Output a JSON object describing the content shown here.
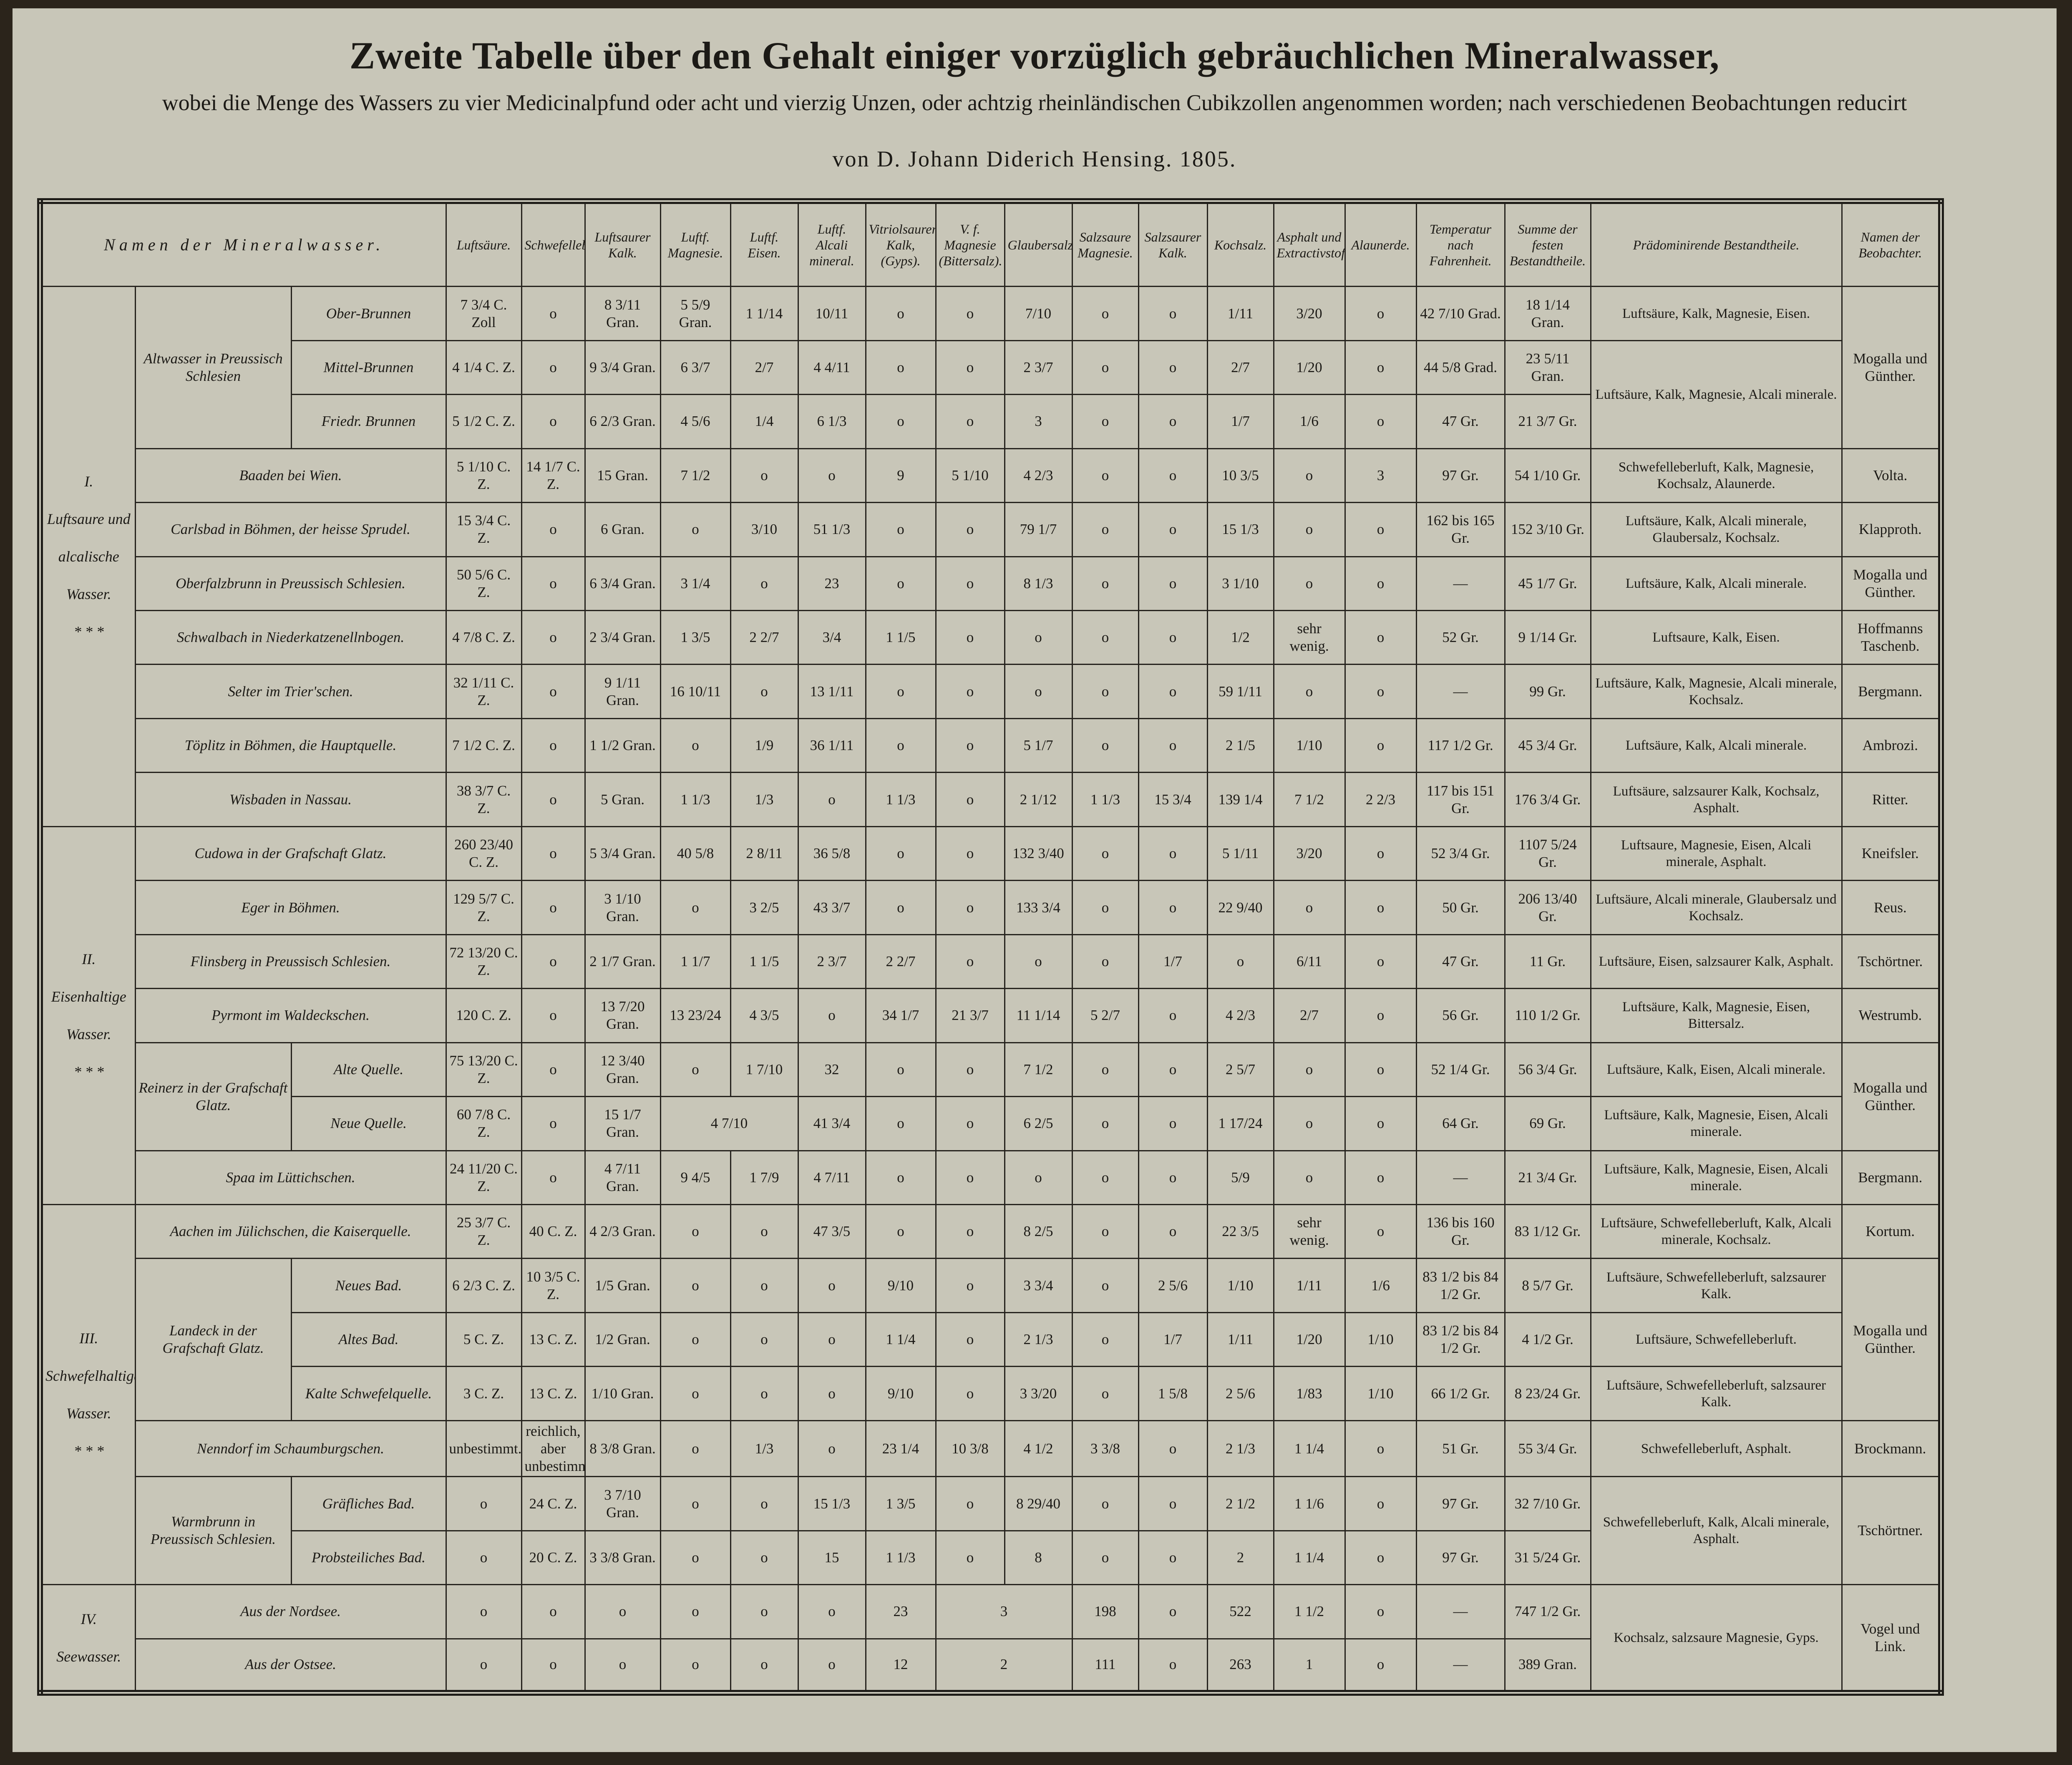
{
  "header": {
    "title": "Zweite Tabelle über den Gehalt einiger vorzüglich gebräuchlichen Mineralwasser,",
    "subtitle": "wobei die Menge des Wassers zu vier Medicinalpfund oder acht und vierzig Unzen, oder achtzig rheinländischen Cubikzollen angenommen worden; nach verschiedenen Beobachtungen reducirt",
    "author": "von D. Johann Diderich Hensing. 1805."
  },
  "table": {
    "columns": [
      "Namen der Mineralwasser.",
      "Luftsäure.",
      "Schwefelleberluft.",
      "Luftsaurer Kalk.",
      "Luftf. Magnesie.",
      "Luftf. Eisen.",
      "Luftf. Alcali mineral.",
      "Vitriolsaurer Kalk, (Gyps).",
      "V. f. Magnesie (Bittersalz).",
      "Glaubersalz.",
      "Salzsaure Magnesie.",
      "Salzsaurer Kalk.",
      "Kochsalz.",
      "Asphalt und Extractivstoff.",
      "Alaunerde.",
      "Temperatur nach Fahrenheit.",
      "Summe der festen Bestandtheile.",
      "Prädominirende Bestandtheile.",
      "Namen der Beobachter."
    ],
    "groups": [
      {
        "label": "I.",
        "caption": "Luftsaure und alcalische Wasser.",
        "mark": "* * *",
        "entries": [
          {
            "name": "Altwasser in Preussisch Schlesien",
            "parts": [
              {
                "name": "Ober-Brunnen",
                "values": [
                  "7 3/4 C. Zoll",
                  "o",
                  "8 3/11 Gran.",
                  "5 5/9 Gran.",
                  "1 1/14",
                  "10/11",
                  "o",
                  "o",
                  "7/10",
                  "o",
                  "o",
                  "1/11",
                  "3/20",
                  "o",
                  "42 7/10 Grad.",
                  "18 1/14 Gran.",
                  "Luftsäure, Kalk, Magnesie, Eisen.",
                  "Mogalla und Günther."
                ]
              },
              {
                "name": "Mittel-Brunnen",
                "values": [
                  "4 1/4 C. Z.",
                  "o",
                  "9 3/4 Gran.",
                  "6 3/7",
                  "2/7",
                  "4 4/11",
                  "o",
                  "o",
                  "2 3/7",
                  "o",
                  "o",
                  "2/7",
                  "1/20",
                  "o",
                  "44 5/8 Grad.",
                  "23 5/11 Gran.",
                  "Luftsäure, Kalk, Magnesie, Alcali minerale.",
                  null
                ]
              },
              {
                "name": "Friedr. Brunnen",
                "values": [
                  "5 1/2 C. Z.",
                  "o",
                  "6 2/3 Gran.",
                  "4 5/6",
                  "1/4",
                  "6 1/3",
                  "o",
                  "o",
                  "3",
                  "o",
                  "o",
                  "1/7",
                  "1/6",
                  "o",
                  "47 Gr.",
                  "21 3/7 Gr.",
                  null,
                  null
                ]
              }
            ]
          },
          {
            "name": "Baaden bei Wien.",
            "values": [
              "5 1/10 C. Z.",
              "14 1/7 C. Z.",
              "15 Gran.",
              "7 1/2",
              "o",
              "o",
              "9",
              "5 1/10",
              "4 2/3",
              "o",
              "o",
              "10 3/5",
              "o",
              "3",
              "97 Gr.",
              "54 1/10 Gr.",
              "Schwefelleberluft, Kalk, Magnesie, Kochsalz, Alaunerde.",
              "Volta."
            ]
          },
          {
            "name": "Carlsbad in Böhmen, der heisse Sprudel.",
            "values": [
              "15 3/4 C. Z.",
              "o",
              "6 Gran.",
              "o",
              "3/10",
              "51 1/3",
              "o",
              "o",
              "79 1/7",
              "o",
              "o",
              "15 1/3",
              "o",
              "o",
              "162 bis 165 Gr.",
              "152 3/10 Gr.",
              "Luftsäure, Kalk, Alcali minerale, Glaubersalz, Kochsalz.",
              "Klapproth."
            ]
          },
          {
            "name": "Oberfalzbrunn in Preussisch Schlesien.",
            "values": [
              "50 5/6 C. Z.",
              "o",
              "6 3/4 Gran.",
              "3 1/4",
              "o",
              "23",
              "o",
              "o",
              "8 1/3",
              "o",
              "o",
              "3 1/10",
              "o",
              "o",
              "—",
              "45 1/7 Gr.",
              "Luftsäure, Kalk, Alcali minerale.",
              "Mogalla und Günther."
            ]
          },
          {
            "name": "Schwalbach in Niederkatzenellnbogen.",
            "values": [
              "4 7/8 C. Z.",
              "o",
              "2 3/4 Gran.",
              "1 3/5",
              "2 2/7",
              "3/4",
              "1 1/5",
              "o",
              "o",
              "o",
              "o",
              "1/2",
              "sehr wenig.",
              "o",
              "52 Gr.",
              "9 1/14 Gr.",
              "Luftsaure, Kalk, Eisen.",
              "Hoffmanns Taschenb."
            ]
          },
          {
            "name": "Selter im Trier'schen.",
            "values": [
              "32 1/11 C. Z.",
              "o",
              "9 1/11 Gran.",
              "16 10/11",
              "o",
              "13 1/11",
              "o",
              "o",
              "o",
              "o",
              "o",
              "59 1/11",
              "o",
              "o",
              "—",
              "99 Gr.",
              "Luftsäure, Kalk, Magnesie, Alcali minerale, Kochsalz.",
              "Bergmann."
            ]
          },
          {
            "name": "Töplitz in Böhmen, die Hauptquelle.",
            "values": [
              "7 1/2 C. Z.",
              "o",
              "1 1/2 Gran.",
              "o",
              "1/9",
              "36 1/11",
              "o",
              "o",
              "5 1/7",
              "o",
              "o",
              "2 1/5",
              "1/10",
              "o",
              "117 1/2 Gr.",
              "45 3/4 Gr.",
              "Luftsäure, Kalk, Alcali minerale.",
              "Ambrozi."
            ]
          },
          {
            "name": "Wisbaden in Nassau.",
            "values": [
              "38 3/7 C. Z.",
              "o",
              "5 Gran.",
              "1 1/3",
              "1/3",
              "o",
              "1 1/3",
              "o",
              "2 1/12",
              "1 1/3",
              "15 3/4",
              "139 1/4",
              "7 1/2",
              "2 2/3",
              "117 bis 151 Gr.",
              "176 3/4 Gr.",
              "Luftsäure, salzsaurer Kalk, Kochsalz, Asphalt.",
              "Ritter."
            ]
          }
        ]
      },
      {
        "label": "II.",
        "caption": "Eisenhaltige Wasser.",
        "mark": "* * *",
        "entries": [
          {
            "name": "Cudowa in der Grafschaft Glatz.",
            "values": [
              "260 23/40 C. Z.",
              "o",
              "5 3/4 Gran.",
              "40 5/8",
              "2 8/11",
              "36 5/8",
              "o",
              "o",
              "132 3/40",
              "o",
              "o",
              "5 1/11",
              "3/20",
              "o",
              "52 3/4 Gr.",
              "1107 5/24 Gr.",
              "Luftsaure, Magnesie, Eisen, Alcali minerale, Asphalt.",
              "Kneifsler."
            ]
          },
          {
            "name": "Eger in Böhmen.",
            "values": [
              "129 5/7 C. Z.",
              "o",
              "3 1/10 Gran.",
              "o",
              "3 2/5",
              "43 3/7",
              "o",
              "o",
              "133 3/4",
              "o",
              "o",
              "22 9/40",
              "o",
              "o",
              "50 Gr.",
              "206 13/40 Gr.",
              "Luftsäure, Alcali minerale, Glaubersalz und Kochsalz.",
              "Reus."
            ]
          },
          {
            "name": "Flinsberg in Preussisch Schlesien.",
            "values": [
              "72 13/20 C. Z.",
              "o",
              "2 1/7 Gran.",
              "1 1/7",
              "1 1/5",
              "2 3/7",
              "2 2/7",
              "o",
              "o",
              "o",
              "1/7",
              "o",
              "6/11",
              "o",
              "47 Gr.",
              "11 Gr.",
              "Luftsäure, Eisen, salzsaurer Kalk, Asphalt.",
              "Tschörtner."
            ]
          },
          {
            "name": "Pyrmont im Waldeckschen.",
            "values": [
              "120 C. Z.",
              "o",
              "13 7/20 Gran.",
              "13 23/24",
              "4 3/5",
              "o",
              "34 1/7",
              "21 3/7",
              "11 1/14",
              "5 2/7",
              "o",
              "4 2/3",
              "2/7",
              "o",
              "56 Gr.",
              "110 1/2 Gr.",
              "Luftsäure, Kalk, Magnesie, Eisen, Bittersalz.",
              "Westrumb."
            ]
          },
          {
            "name": "Reinerz in der Grafschaft Glatz.",
            "parts": [
              {
                "name": "Alte Quelle.",
                "values": [
                  "75 13/20 C. Z.",
                  "o",
                  "12 3/40 Gran.",
                  "o",
                  "1 7/10",
                  "32",
                  "o",
                  "o",
                  "7 1/2",
                  "o",
                  "o",
                  "2 5/7",
                  "o",
                  "o",
                  "52 1/4 Gr.",
                  "56 3/4 Gr.",
                  "Luftsäure, Kalk, Eisen, Alcali minerale.",
                  "Mogalla und Günther."
                ]
              },
              {
                "name": "Neue Quelle.",
                "values": [
                  "60 7/8 C. Z.",
                  "o",
                  "15 1/7 Gran.",
                  "4 7/10",
                  null,
                  "41 3/4",
                  "o",
                  "o",
                  "6 2/5",
                  "o",
                  "o",
                  "1 17/24",
                  "o",
                  "o",
                  "64 Gr.",
                  "69 Gr.",
                  "Luftsäure, Kalk, Magnesie, Eisen, Alcali minerale.",
                  null
                ]
              }
            ]
          },
          {
            "name": "Spaa im Lüttichschen.",
            "values": [
              "24 11/20 C. Z.",
              "o",
              "4 7/11 Gran.",
              "9 4/5",
              "1 7/9",
              "4 7/11",
              "o",
              "o",
              "o",
              "o",
              "o",
              "5/9",
              "o",
              "o",
              "—",
              "21 3/4 Gr.",
              "Luftsäure, Kalk, Magnesie, Eisen, Alcali minerale.",
              "Bergmann."
            ]
          }
        ]
      },
      {
        "label": "III.",
        "caption": "Schwefelhaltige Wasser.",
        "mark": "* * *",
        "entries": [
          {
            "name": "Aachen im Jülichschen, die Kaiserquelle.",
            "values": [
              "25 3/7 C. Z.",
              "40 C. Z.",
              "4 2/3 Gran.",
              "o",
              "o",
              "47 3/5",
              "o",
              "o",
              "8 2/5",
              "o",
              "o",
              "22 3/5",
              "sehr wenig.",
              "o",
              "136 bis 160 Gr.",
              "83 1/12 Gr.",
              "Luftsäure, Schwefelleberluft, Kalk, Alcali minerale, Kochsalz.",
              "Kortum."
            ]
          },
          {
            "name": "Landeck in der Grafschaft Glatz.",
            "parts": [
              {
                "name": "Neues Bad.",
                "values": [
                  "6 2/3 C. Z.",
                  "10 3/5 C. Z.",
                  "1/5 Gran.",
                  "o",
                  "o",
                  "o",
                  "9/10",
                  "o",
                  "3 3/4",
                  "o",
                  "2 5/6",
                  "1/10",
                  "1/11",
                  "1/6",
                  "83 1/2 bis 84 1/2 Gr.",
                  "8 5/7 Gr.",
                  "Luftsäure, Schwefelleberluft, salzsaurer Kalk.",
                  "Mogalla und Günther."
                ]
              },
              {
                "name": "Altes Bad.",
                "values": [
                  "5 C. Z.",
                  "13 C. Z.",
                  "1/2 Gran.",
                  "o",
                  "o",
                  "o",
                  "1 1/4",
                  "o",
                  "2 1/3",
                  "o",
                  "1/7",
                  "1/11",
                  "1/20",
                  "1/10",
                  "83 1/2 bis 84 1/2 Gr.",
                  "4 1/2 Gr.",
                  "Luftsäure, Schwefelleberluft.",
                  null
                ]
              },
              {
                "name": "Kalte Schwefelquelle.",
                "values": [
                  "3 C. Z.",
                  "13 C. Z.",
                  "1/10 Gran.",
                  "o",
                  "o",
                  "o",
                  "9/10",
                  "o",
                  "3 3/20",
                  "o",
                  "1 5/8",
                  "2 5/6",
                  "1/83",
                  "1/10",
                  "66 1/2 Gr.",
                  "8 23/24 Gr.",
                  "Luftsäure, Schwefelleberluft, salzsaurer Kalk.",
                  null
                ]
              }
            ]
          },
          {
            "name": "Nenndorf im Schaumburgschen.",
            "values": [
              "unbestimmt.",
              "reichlich, aber unbestimmt",
              "8 3/8 Gran.",
              "o",
              "1/3",
              "o",
              "23 1/4",
              "10 3/8",
              "4 1/2",
              "3 3/8",
              "o",
              "2 1/3",
              "1 1/4",
              "o",
              "51 Gr.",
              "55 3/4 Gr.",
              "Schwefelleberluft, Asphalt.",
              "Brockmann."
            ]
          },
          {
            "name": "Warmbrunn in Preussisch Schlesien.",
            "parts": [
              {
                "name": "Gräfliches Bad.",
                "values": [
                  "o",
                  "24 C. Z.",
                  "3 7/10 Gran.",
                  "o",
                  "o",
                  "15 1/3",
                  "1 3/5",
                  "o",
                  "8 29/40",
                  "o",
                  "o",
                  "2 1/2",
                  "1 1/6",
                  "o",
                  "97 Gr.",
                  "32 7/10 Gr.",
                  "Schwefelleberluft, Kalk, Alcali minerale, Asphalt.",
                  "Tschörtner."
                ]
              },
              {
                "name": "Probsteiliches Bad.",
                "values": [
                  "o",
                  "20 C. Z.",
                  "3 3/8 Gran.",
                  "o",
                  "o",
                  "15",
                  "1 1/3",
                  "o",
                  "8",
                  "o",
                  "o",
                  "2",
                  "1 1/4",
                  "o",
                  "97 Gr.",
                  "31 5/24 Gr.",
                  null,
                  null
                ]
              }
            ]
          }
        ]
      },
      {
        "label": "IV.",
        "caption": "Seewasser.",
        "entries": [
          {
            "name": "Aus der Nordsee.",
            "values": [
              "o",
              "o",
              "o",
              "o",
              "o",
              "o",
              "23",
              "3",
              null,
              "198",
              "o",
              "522",
              "1 1/2",
              "o",
              "—",
              "747 1/2 Gr.",
              "Kochsalz, salzsaure Magnesie, Gyps.",
              "Vogel und Link."
            ]
          },
          {
            "name": "Aus der Ostsee.",
            "values": [
              "o",
              "o",
              "o",
              "o",
              "o",
              "o",
              "12",
              "2",
              null,
              "111",
              "o",
              "263",
              "1",
              "o",
              "—",
              "389 Gran.",
              null,
              null
            ]
          }
        ]
      }
    ]
  }
}
